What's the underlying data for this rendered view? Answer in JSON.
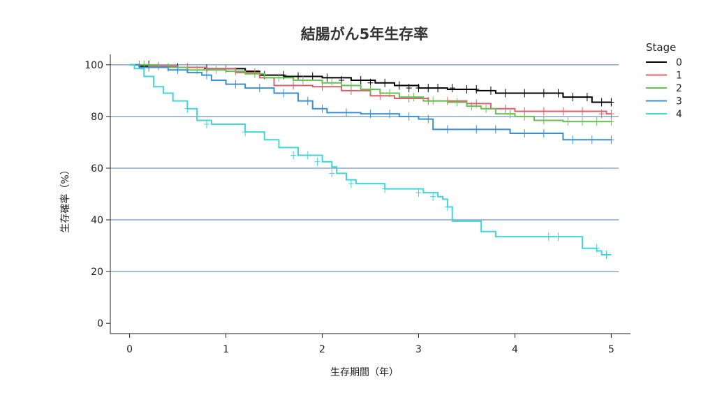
{
  "chart_data": {
    "type": "line",
    "step": true,
    "title": "結腸がん5年生存率",
    "xlabel": "生存期間（年）",
    "ylabel": "生存確率（%）",
    "xlim": [
      -0.2,
      5.2
    ],
    "ylim": [
      -4,
      104
    ],
    "xticks": [
      0,
      1,
      2,
      3,
      4,
      5
    ],
    "xtick_labels": [
      "0",
      "1",
      "2",
      "3",
      "4",
      "5"
    ],
    "yticks": [
      0,
      20,
      40,
      60,
      80,
      100
    ],
    "ytick_labels": [
      "0",
      "20",
      "40",
      "60",
      "80",
      "100"
    ],
    "grid": "horizontal",
    "legend": {
      "title": "Stage",
      "position": "top-right"
    },
    "series": [
      {
        "name": "0",
        "color": "#000000",
        "x": [
          0,
          0.1,
          0.3,
          0.5,
          0.8,
          1.2,
          1.35,
          1.6,
          2.0,
          2.3,
          2.55,
          2.75,
          3.0,
          3.3,
          3.6,
          3.8,
          4.0,
          4.5,
          4.8,
          5.0
        ],
        "y": [
          100,
          99.5,
          99,
          99,
          98.5,
          97.5,
          96,
          95.5,
          95,
          94,
          93,
          92,
          91,
          90.5,
          90,
          89,
          89,
          87.5,
          85.5,
          85.5
        ],
        "censored": [
          [
            0.2,
            100
          ],
          [
            0.5,
            99
          ],
          [
            0.8,
            98.5
          ],
          [
            1.0,
            98.5
          ],
          [
            1.4,
            96
          ],
          [
            1.6,
            96
          ],
          [
            1.75,
            95.5
          ],
          [
            1.9,
            95.5
          ],
          [
            2.05,
            95
          ],
          [
            2.2,
            94
          ],
          [
            2.4,
            94
          ],
          [
            2.5,
            93
          ],
          [
            2.65,
            93
          ],
          [
            2.8,
            92
          ],
          [
            2.9,
            91
          ],
          [
            3.0,
            91
          ],
          [
            3.1,
            91
          ],
          [
            3.2,
            91
          ],
          [
            3.35,
            91
          ],
          [
            3.5,
            90.5
          ],
          [
            3.6,
            90.5
          ],
          [
            3.75,
            90
          ],
          [
            3.9,
            89
          ],
          [
            4.1,
            89
          ],
          [
            4.3,
            89
          ],
          [
            4.45,
            89
          ],
          [
            4.6,
            87.5
          ],
          [
            4.75,
            87.5
          ],
          [
            4.9,
            85.5
          ],
          [
            5.0,
            85.5
          ]
        ]
      },
      {
        "name": "1",
        "color": "#d9606e",
        "x": [
          0,
          0.2,
          0.5,
          0.8,
          1.1,
          1.35,
          1.5,
          1.9,
          2.2,
          2.5,
          2.75,
          3.1,
          3.5,
          3.75,
          4.0,
          4.5,
          4.95,
          5.0
        ],
        "y": [
          100,
          99.5,
          99,
          98.5,
          97,
          95,
          92,
          91.5,
          90,
          88,
          87,
          86,
          85,
          83,
          82,
          82,
          81,
          81
        ],
        "censored": [
          [
            0.1,
            100
          ],
          [
            0.3,
            99.5
          ],
          [
            0.6,
            99
          ],
          [
            1.0,
            98.5
          ],
          [
            1.3,
            97
          ],
          [
            1.7,
            92
          ],
          [
            2.0,
            91.5
          ],
          [
            2.3,
            90
          ],
          [
            2.6,
            88
          ],
          [
            2.9,
            87
          ],
          [
            3.1,
            86
          ],
          [
            3.3,
            86
          ],
          [
            3.6,
            85
          ],
          [
            3.9,
            83
          ],
          [
            4.1,
            82
          ],
          [
            4.3,
            82
          ],
          [
            4.5,
            82
          ],
          [
            4.7,
            82
          ],
          [
            4.9,
            81
          ],
          [
            5.0,
            81
          ]
        ]
      },
      {
        "name": "2",
        "color": "#66c24f",
        "x": [
          0,
          0.3,
          0.6,
          1.0,
          1.2,
          1.4,
          1.7,
          2.0,
          2.2,
          2.4,
          2.6,
          2.8,
          3.05,
          3.3,
          3.5,
          3.65,
          3.8,
          4.0,
          4.2,
          4.5,
          5.0
        ],
        "y": [
          100,
          99,
          98,
          97.5,
          96.5,
          95,
          94,
          93,
          92,
          90.5,
          89,
          87.5,
          86,
          85.5,
          84,
          83,
          81,
          80,
          78.5,
          78,
          78
        ],
        "censored": [
          [
            0.15,
            100
          ],
          [
            0.4,
            99
          ],
          [
            0.7,
            98
          ],
          [
            0.9,
            98
          ],
          [
            1.1,
            97.5
          ],
          [
            1.3,
            96.5
          ],
          [
            1.55,
            95
          ],
          [
            1.8,
            94
          ],
          [
            2.1,
            93
          ],
          [
            2.3,
            92
          ],
          [
            2.5,
            90.5
          ],
          [
            2.7,
            89
          ],
          [
            2.95,
            87.5
          ],
          [
            3.15,
            86
          ],
          [
            3.4,
            85.5
          ],
          [
            3.55,
            84
          ],
          [
            3.7,
            83
          ],
          [
            3.95,
            81
          ],
          [
            4.1,
            80
          ],
          [
            4.3,
            78.5
          ],
          [
            4.55,
            78
          ],
          [
            4.7,
            78
          ],
          [
            4.85,
            78
          ],
          [
            5.0,
            78
          ]
        ]
      },
      {
        "name": "3",
        "color": "#3a8fd0",
        "x": [
          0,
          0.1,
          0.4,
          0.6,
          0.75,
          0.85,
          1.0,
          1.2,
          1.5,
          1.75,
          1.9,
          2.05,
          2.4,
          2.8,
          3.0,
          3.15,
          3.5,
          3.95,
          4.5,
          5.0
        ],
        "y": [
          100,
          99,
          98,
          97,
          96,
          94,
          92.5,
          91,
          89,
          86,
          83,
          81.5,
          81,
          80,
          79,
          75,
          75,
          73.5,
          71,
          71
        ],
        "censored": [
          [
            0.2,
            99
          ],
          [
            0.5,
            98
          ],
          [
            0.8,
            96
          ],
          [
            1.1,
            92.5
          ],
          [
            1.35,
            91
          ],
          [
            1.6,
            89
          ],
          [
            1.85,
            86
          ],
          [
            2.0,
            83
          ],
          [
            2.25,
            81.5
          ],
          [
            2.5,
            81
          ],
          [
            2.7,
            81
          ],
          [
            2.9,
            80
          ],
          [
            3.1,
            79
          ],
          [
            3.3,
            75
          ],
          [
            3.6,
            75
          ],
          [
            3.8,
            75
          ],
          [
            4.1,
            73.5
          ],
          [
            4.3,
            73.5
          ],
          [
            4.6,
            71
          ],
          [
            4.8,
            71
          ],
          [
            5.0,
            71
          ]
        ]
      },
      {
        "name": "4",
        "color": "#3ed6d9",
        "x": [
          0,
          0.05,
          0.15,
          0.25,
          0.35,
          0.45,
          0.6,
          0.7,
          0.85,
          1.2,
          1.4,
          1.55,
          1.75,
          2.0,
          2.1,
          2.15,
          2.25,
          2.35,
          2.65,
          3.05,
          3.2,
          3.25,
          3.3,
          3.35,
          3.65,
          3.8,
          4.4,
          4.7,
          4.8,
          4.85,
          4.9,
          5.0
        ],
        "y": [
          100,
          98.5,
          95.5,
          91.5,
          89,
          86,
          83,
          78.5,
          77,
          74,
          71,
          68,
          65,
          62.5,
          60.5,
          58,
          55.5,
          54,
          52,
          50.5,
          49,
          48,
          45,
          39.5,
          35.5,
          33.5,
          33.5,
          29,
          29,
          28,
          26.5,
          26.5
        ],
        "censored": [
          [
            0.6,
            83
          ],
          [
            0.8,
            77
          ],
          [
            1.2,
            74
          ],
          [
            1.7,
            65
          ],
          [
            1.85,
            65
          ],
          [
            1.95,
            62.5
          ],
          [
            2.1,
            58
          ],
          [
            2.3,
            54
          ],
          [
            2.65,
            52
          ],
          [
            3.0,
            50.5
          ],
          [
            3.15,
            49
          ],
          [
            3.3,
            45
          ],
          [
            4.35,
            33.5
          ],
          [
            4.45,
            33.5
          ],
          [
            4.85,
            29
          ],
          [
            4.95,
            26.5
          ]
        ]
      }
    ]
  }
}
